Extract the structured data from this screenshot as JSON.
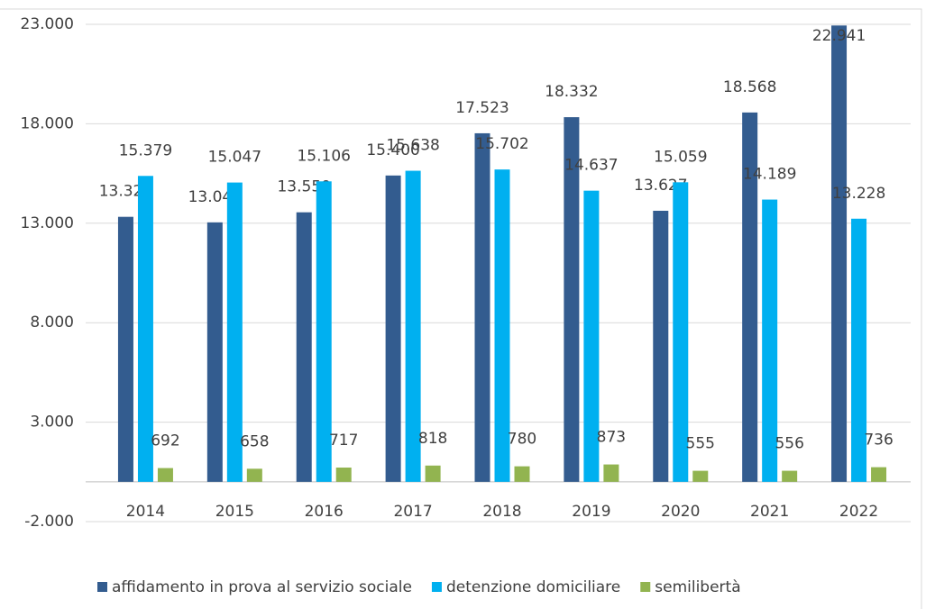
{
  "chart_data": {
    "type": "bar",
    "categories": [
      "2014",
      "2015",
      "2016",
      "2017",
      "2018",
      "2019",
      "2020",
      "2021",
      "2022"
    ],
    "series": [
      {
        "name": "affidamento in prova al servizio sociale",
        "color": "#335c8f",
        "values": [
          13322,
          13044,
          13550,
          15400,
          17523,
          18332,
          13627,
          18568,
          22941
        ],
        "value_labels": [
          "13.322",
          "13.044",
          "13.550",
          "15.400",
          "17.523",
          "18.332",
          "13.627",
          "18.568",
          "22.941"
        ]
      },
      {
        "name": "detenzione domiciliare",
        "color": "#00b0f0",
        "values": [
          15379,
          15047,
          15106,
          15638,
          15702,
          14637,
          15059,
          14189,
          13228
        ],
        "value_labels": [
          "15.379",
          "15.047",
          "15.106",
          "15.638",
          "15.702",
          "14.637",
          "15.059",
          "14.189",
          "13.228"
        ]
      },
      {
        "name": "semilibertà",
        "color": "#92b450",
        "values": [
          692,
          658,
          717,
          818,
          780,
          873,
          555,
          556,
          736
        ]
      }
    ],
    "ylim": [
      -2000,
      23000
    ],
    "yticks": [
      {
        "value": -2000,
        "label": "-2.000"
      },
      {
        "value": 3000,
        "label": "3.000"
      },
      {
        "value": 8000,
        "label": "8.000"
      },
      {
        "value": 13000,
        "label": "13.000"
      },
      {
        "value": 18000,
        "label": "18.000"
      },
      {
        "value": 23000,
        "label": "23.000"
      }
    ],
    "grid": true,
    "legend": "bottom"
  }
}
